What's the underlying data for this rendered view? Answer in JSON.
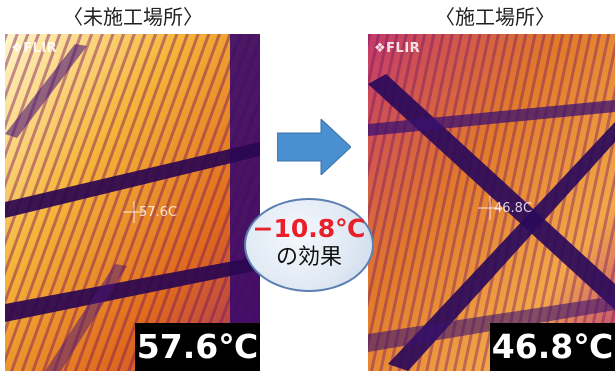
{
  "left_panel": {
    "caption": "〈未施工場所〉",
    "logo": "FLIR",
    "crosshair_reading": "57.6C",
    "temperature": "57.6℃"
  },
  "right_panel": {
    "caption": "〈施工場所〉",
    "logo": "FLIR",
    "crosshair_reading": "46.8C",
    "temperature": "46.8℃"
  },
  "effect": {
    "value": "−10.8℃",
    "label": "の効果",
    "value_color": "#e8202a"
  },
  "arrow": {
    "icon": "right-arrow-icon",
    "color": "#4a90d0"
  }
}
